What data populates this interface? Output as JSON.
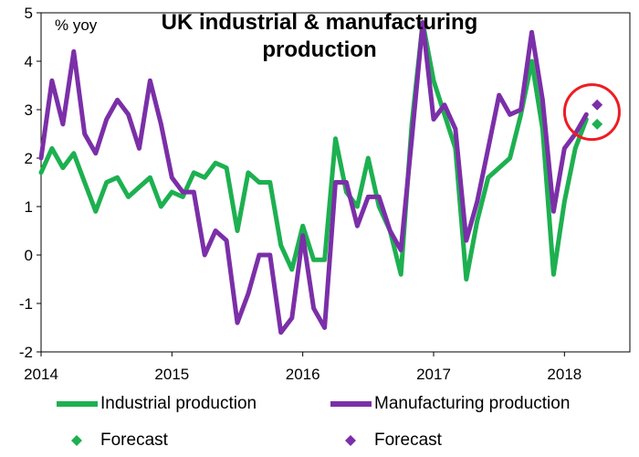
{
  "chart_data": {
    "type": "line",
    "title": "UK industrial & manufacturing production",
    "unit_label": "% yoy",
    "xlabel": "",
    "ylabel": "",
    "xlim": [
      2014.0,
      2018.5
    ],
    "ylim": [
      -2,
      5
    ],
    "y_ticks": [
      "-2",
      "-1",
      "0",
      "1",
      "2",
      "3",
      "4",
      "5"
    ],
    "x_ticks": [
      "2014",
      "2015",
      "2016",
      "2017",
      "2018"
    ],
    "grid": false,
    "legend_placement": "bottom",
    "series": [
      {
        "name": "Industrial production",
        "color": "#1db050",
        "x": [
          2014.0,
          2014.083,
          2014.167,
          2014.25,
          2014.333,
          2014.417,
          2014.5,
          2014.583,
          2014.667,
          2014.75,
          2014.833,
          2014.917,
          2015.0,
          2015.083,
          2015.167,
          2015.25,
          2015.333,
          2015.417,
          2015.5,
          2015.583,
          2015.667,
          2015.75,
          2015.833,
          2015.917,
          2016.0,
          2016.083,
          2016.167,
          2016.25,
          2016.333,
          2016.417,
          2016.5,
          2016.583,
          2016.667,
          2016.75,
          2016.833,
          2016.917,
          2017.0,
          2017.083,
          2017.167,
          2017.25,
          2017.333,
          2017.417,
          2017.5,
          2017.583,
          2017.667,
          2017.75,
          2017.833,
          2017.917,
          2018.0,
          2018.083,
          2018.167
        ],
        "values": [
          1.7,
          2.2,
          1.8,
          2.1,
          1.5,
          0.9,
          1.5,
          1.6,
          1.2,
          1.4,
          1.6,
          1.0,
          1.3,
          1.2,
          1.7,
          1.6,
          1.9,
          1.8,
          0.5,
          1.7,
          1.5,
          1.5,
          0.2,
          -0.3,
          0.6,
          -0.1,
          -0.1,
          2.4,
          1.3,
          1.0,
          2.0,
          1.0,
          0.5,
          -0.4,
          2.7,
          4.8,
          3.6,
          2.9,
          2.2,
          -0.5,
          0.7,
          1.6,
          1.8,
          2.0,
          2.9,
          4.0,
          2.6,
          -0.4,
          1.1,
          2.2,
          2.8
        ]
      },
      {
        "name": "Manufacturing production",
        "color": "#7b2fa8",
        "x": [
          2014.0,
          2014.083,
          2014.167,
          2014.25,
          2014.333,
          2014.417,
          2014.5,
          2014.583,
          2014.667,
          2014.75,
          2014.833,
          2014.917,
          2015.0,
          2015.083,
          2015.167,
          2015.25,
          2015.333,
          2015.417,
          2015.5,
          2015.583,
          2015.667,
          2015.75,
          2015.833,
          2015.917,
          2016.0,
          2016.083,
          2016.167,
          2016.25,
          2016.333,
          2016.417,
          2016.5,
          2016.583,
          2016.667,
          2016.75,
          2016.833,
          2016.917,
          2017.0,
          2017.083,
          2017.167,
          2017.25,
          2017.333,
          2017.417,
          2017.5,
          2017.583,
          2017.667,
          2017.75,
          2017.833,
          2017.917,
          2018.0,
          2018.083,
          2018.167
        ],
        "values": [
          2.0,
          3.6,
          2.7,
          4.2,
          2.5,
          2.1,
          2.8,
          3.2,
          2.9,
          2.2,
          3.6,
          2.7,
          1.6,
          1.3,
          1.3,
          0.0,
          0.5,
          0.3,
          -1.4,
          -0.8,
          0.0,
          0.0,
          -1.6,
          -1.3,
          0.4,
          -1.1,
          -1.5,
          1.5,
          1.5,
          0.6,
          1.2,
          1.2,
          0.5,
          0.1,
          2.4,
          4.8,
          2.8,
          3.1,
          2.6,
          0.3,
          1.1,
          2.2,
          3.3,
          2.9,
          3.0,
          4.6,
          3.2,
          0.9,
          2.2,
          2.5,
          2.9
        ]
      }
    ],
    "forecasts": [
      {
        "name": "Forecast",
        "color": "#1db050",
        "x": 2018.25,
        "value": 2.7
      },
      {
        "name": "Forecast",
        "color": "#7b2fa8",
        "x": 2018.25,
        "value": 3.1
      }
    ],
    "annotation": {
      "shape": "circle",
      "color": "#ee1c24",
      "center_x": 2018.21,
      "center_y": 2.95
    }
  }
}
